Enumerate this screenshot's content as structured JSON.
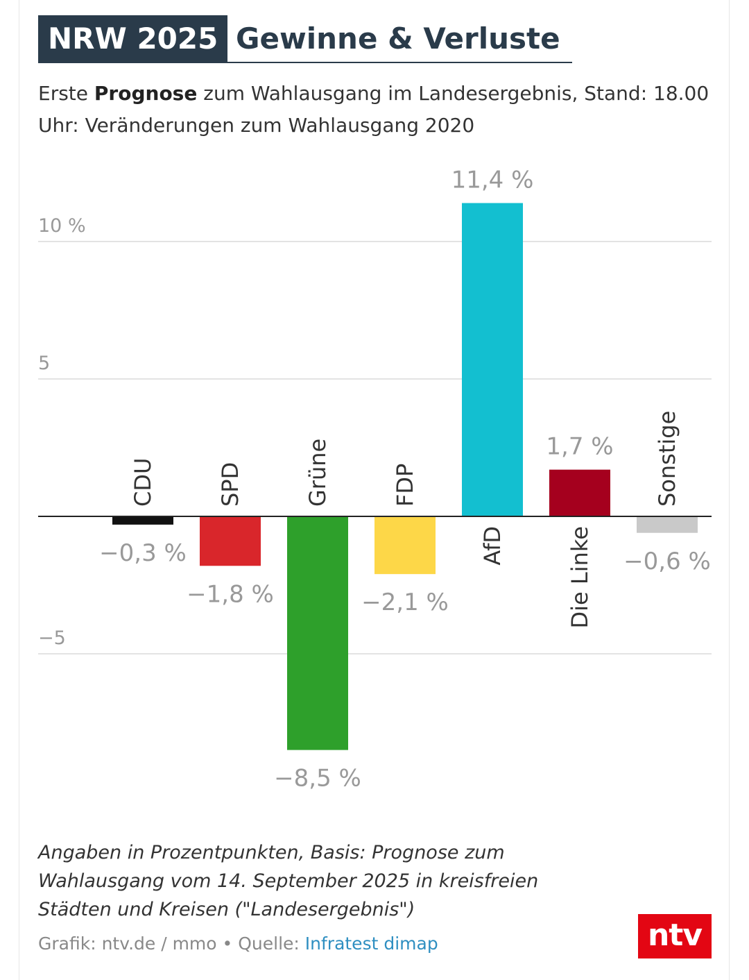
{
  "header": {
    "tag": "NRW 2025",
    "title": "Gewinne & Verluste",
    "subtitle_pre": "Erste ",
    "subtitle_bold": "Prognose",
    "subtitle_post": " zum Wahlausgang im Landesergebnis, Stand: 18.00 Uhr: Veränderungen zum Wahlausgang 2020"
  },
  "chart_data": {
    "type": "bar",
    "categories": [
      "CDU",
      "SPD",
      "Grüne",
      "FDP",
      "AfD",
      "Die Linke",
      "Sonstige"
    ],
    "values": [
      -0.3,
      -1.8,
      -8.5,
      -2.1,
      11.4,
      1.7,
      -0.6
    ],
    "value_labels": [
      "−0,3 %",
      "−1,8 %",
      "−8,5 %",
      "−2,1 %",
      "11,4 %",
      "1,7 %",
      "−0,6 %"
    ],
    "colors": [
      "#111111",
      "#d9262b",
      "#2ea02b",
      "#fdd748",
      "#13bfd0",
      "#a5001e",
      "#c9c9c9"
    ],
    "y_ticks": [
      {
        "value": 10,
        "label": "10 %"
      },
      {
        "value": 5,
        "label": "5"
      },
      {
        "value": -5,
        "label": "−5"
      }
    ],
    "ylim": [
      -8.5,
      11.4
    ],
    "grid": true,
    "xlabel": "",
    "ylabel": ""
  },
  "footer": {
    "note": "Angaben in Prozentpunkten, Basis: Prognose zum Wahlausgang vom 14. September 2025 in kreisfreien Städten und Kreisen (\"Landesergebnis\")",
    "credit_prefix": "Grafik: ntv.de / mmo • Quelle: ",
    "source_link": "Infratest dimap",
    "logo": "ntv"
  }
}
